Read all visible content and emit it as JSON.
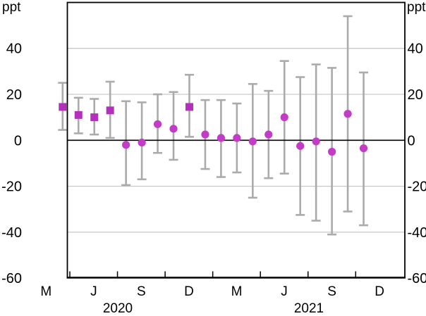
{
  "chart_data": {
    "type": "scatter",
    "title": "",
    "description": "Monthly point estimates (magenta markers) with grey confidence-interval whiskers, April 2020 to November 2021",
    "y_axis": {
      "unit": "ppt",
      "min": -60,
      "max": 60,
      "tick_values": [
        40,
        20,
        0,
        -20,
        -40,
        -60
      ],
      "tick_labels": [
        "40",
        "20",
        "0",
        "-20",
        "-40",
        "-60"
      ],
      "gridline_values": [
        40,
        20,
        -20,
        -40
      ],
      "zero_line": 0,
      "labels_on_both_sides": true
    },
    "x_axis": {
      "tick_labels": [
        "M",
        "J",
        "S",
        "D",
        "M",
        "J",
        "S",
        "D"
      ],
      "year_labels": [
        "2020",
        "2021"
      ]
    },
    "points": [
      {
        "month": "Apr 2020",
        "marker": "square",
        "value": 14.5,
        "ci_low": 4.5,
        "ci_high": 25
      },
      {
        "month": "May 2020",
        "marker": "square",
        "value": 11,
        "ci_low": 3,
        "ci_high": 18.5
      },
      {
        "month": "Jun 2020",
        "marker": "square",
        "value": 10,
        "ci_low": 2.5,
        "ci_high": 18
      },
      {
        "month": "Jul 2020",
        "marker": "square",
        "value": 13,
        "ci_low": 1,
        "ci_high": 25.5
      },
      {
        "month": "Aug 2020",
        "marker": "circle",
        "value": -2,
        "ci_low": -19.5,
        "ci_high": 17
      },
      {
        "month": "Sep 2020",
        "marker": "circle",
        "value": -1,
        "ci_low": -17,
        "ci_high": 16.5
      },
      {
        "month": "Oct 2020",
        "marker": "circle",
        "value": 7,
        "ci_low": -5.5,
        "ci_high": 20
      },
      {
        "month": "Nov 2020",
        "marker": "circle",
        "value": 5,
        "ci_low": -8.5,
        "ci_high": 21
      },
      {
        "month": "Dec 2020",
        "marker": "square",
        "value": 14.5,
        "ci_low": 1.5,
        "ci_high": 28.5
      },
      {
        "month": "Jan 2021",
        "marker": "circle",
        "value": 2.5,
        "ci_low": -12.5,
        "ci_high": 17.5
      },
      {
        "month": "Feb 2021",
        "marker": "circle",
        "value": 1,
        "ci_low": -16,
        "ci_high": 17.5
      },
      {
        "month": "Mar 2021",
        "marker": "circle",
        "value": 1,
        "ci_low": -14,
        "ci_high": 16
      },
      {
        "month": "Apr 2021",
        "marker": "circle",
        "value": -0.5,
        "ci_low": -25,
        "ci_high": 24.5
      },
      {
        "month": "May 2021",
        "marker": "circle",
        "value": 2.5,
        "ci_low": -16.5,
        "ci_high": 21.5
      },
      {
        "month": "Jun 2021",
        "marker": "circle",
        "value": 10,
        "ci_low": -14.5,
        "ci_high": 34.5
      },
      {
        "month": "Jul 2021",
        "marker": "circle",
        "value": -2.5,
        "ci_low": -32.5,
        "ci_high": 27.5
      },
      {
        "month": "Aug 2021",
        "marker": "circle",
        "value": -0.5,
        "ci_low": -35,
        "ci_high": 33
      },
      {
        "month": "Sep 2021",
        "marker": "circle",
        "value": -5,
        "ci_low": -41,
        "ci_high": 31.5
      },
      {
        "month": "Oct 2021",
        "marker": "circle",
        "value": 11.5,
        "ci_low": -31,
        "ci_high": 54
      },
      {
        "month": "Nov 2021",
        "marker": "circle",
        "value": -3.5,
        "ci_low": -37,
        "ci_high": 29.5
      }
    ],
    "colors": {
      "marker_square": "#B42FBB",
      "marker_circle": "#C23CC6",
      "error_bar": "#ABABAB",
      "gridline": "#C9C9C9",
      "axis": "#000000",
      "background": "#FFFFFF"
    },
    "layout_hints": {
      "grid": true,
      "legend": "none",
      "whisker_caps": true
    }
  }
}
